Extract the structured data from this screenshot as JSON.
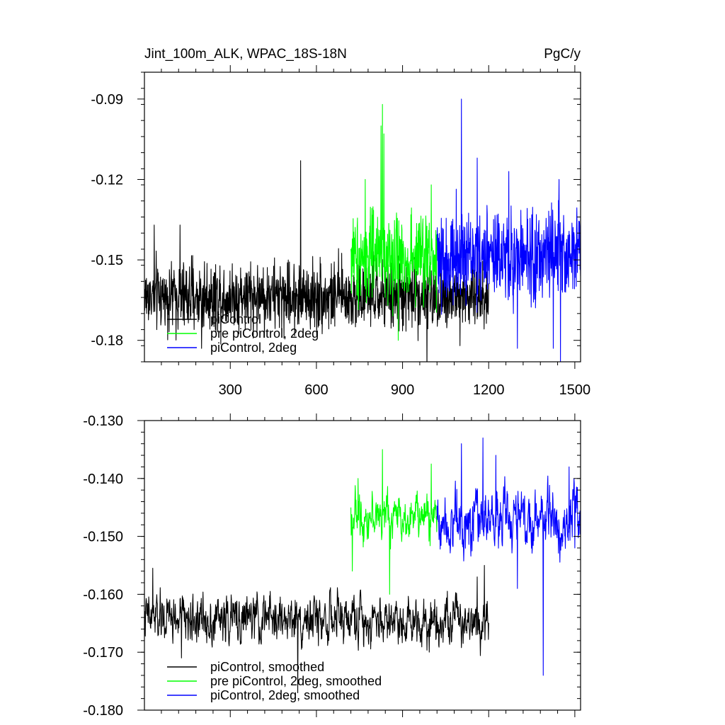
{
  "figure": {
    "title_left": "Jint_100m_ALK, WPAC_18S-18N",
    "title_right": "PgC/y"
  },
  "colors": {
    "piControl": "#000000",
    "pre_piControl_2deg": "#00ff00",
    "piControl_2deg": "#0000ff"
  },
  "chart_data": [
    {
      "type": "line",
      "title": "Jint_100m_ALK, WPAC_18S-18N",
      "units": "PgC/y",
      "xlim": [
        1,
        1520
      ],
      "ylim": [
        -0.188,
        -0.08
      ],
      "xticks": [
        300,
        600,
        900,
        1200,
        1500
      ],
      "yticks": [
        -0.18,
        -0.15,
        -0.12,
        -0.09
      ],
      "xtick_labels": [
        "300",
        "600",
        "900",
        "1200",
        "1500"
      ],
      "ytick_labels": [
        "-0.18",
        "-0.15",
        "-0.12",
        "-0.09"
      ],
      "legend_placement": "bottom-left",
      "legend": [
        "piControl",
        "pre piControl, 2deg",
        "piControl, 2deg"
      ],
      "series": [
        {
          "name": "piControl",
          "color": "#000000",
          "x_start": 1,
          "x_end": 1200,
          "mean": -0.1635,
          "noise": 0.0065,
          "spikes": [
            [
              35,
              -0.137
            ],
            [
              125,
              -0.137
            ],
            [
              200,
              -0.183
            ],
            [
              545,
              -0.113
            ],
            [
              985,
              -0.193
            ],
            [
              1100,
              -0.182
            ]
          ]
        },
        {
          "name": "pre piControl, 2deg",
          "color": "#00ff00",
          "x_start": 720,
          "x_end": 1020,
          "mean": -0.149,
          "noise": 0.0085,
          "spikes": [
            [
              770,
              -0.12
            ],
            [
              825,
              -0.1
            ],
            [
              830,
              -0.092
            ],
            [
              835,
              -0.103
            ],
            [
              885,
              -0.18
            ],
            [
              1000,
              -0.122
            ]
          ]
        },
        {
          "name": "piControl, 2deg",
          "color": "#0000ff",
          "x_start": 1020,
          "x_end": 1520,
          "mean": -0.149,
          "noise": 0.009,
          "spikes": [
            [
              1105,
              -0.09
            ],
            [
              1160,
              -0.112
            ],
            [
              1300,
              -0.183
            ],
            [
              1425,
              -0.183
            ],
            [
              1450,
              -0.188
            ],
            [
              1270,
              -0.117
            ],
            [
              1445,
              -0.12
            ]
          ]
        }
      ]
    },
    {
      "type": "line",
      "xlim": [
        1,
        1520
      ],
      "ylim": [
        -0.18,
        -0.13
      ],
      "xticks": [
        300,
        600,
        900,
        1200,
        1500
      ],
      "yticks": [
        -0.18,
        -0.17,
        -0.16,
        -0.15,
        -0.14,
        -0.13
      ],
      "ytick_labels": [
        "-0.180",
        "-0.170",
        "-0.160",
        "-0.150",
        "-0.140",
        "-0.130"
      ],
      "legend_placement": "bottom-left",
      "legend": [
        "piControl, smoothed",
        "pre piControl, 2deg, smoothed",
        "piControl, 2deg, smoothed"
      ],
      "series": [
        {
          "name": "piControl, smoothed",
          "color": "#000000",
          "x_start": 1,
          "x_end": 1200,
          "mean": -0.1643,
          "noise": 0.0024,
          "spikes": [
            [
              30,
              -0.1555
            ],
            [
              130,
              -0.171
            ],
            [
              535,
              -0.177
            ],
            [
              1160,
              -0.157
            ],
            [
              1185,
              -0.155
            ]
          ]
        },
        {
          "name": "pre piControl, 2deg, smoothed",
          "color": "#00ff00",
          "x_start": 720,
          "x_end": 1020,
          "mean": -0.1465,
          "noise": 0.0022,
          "spikes": [
            [
              725,
              -0.156
            ],
            [
              745,
              -0.14
            ],
            [
              830,
              -0.135
            ],
            [
              855,
              -0.16
            ],
            [
              1000,
              -0.1375
            ]
          ]
        },
        {
          "name": "piControl, 2deg, smoothed",
          "color": "#0000ff",
          "x_start": 1020,
          "x_end": 1520,
          "mean": -0.147,
          "noise": 0.003,
          "spikes": [
            [
              1105,
              -0.134
            ],
            [
              1180,
              -0.133
            ],
            [
              1225,
              -0.136
            ],
            [
              1390,
              -0.174
            ],
            [
              1480,
              -0.138
            ],
            [
              1300,
              -0.159
            ],
            [
              1500,
              -0.152
            ]
          ]
        }
      ]
    }
  ]
}
